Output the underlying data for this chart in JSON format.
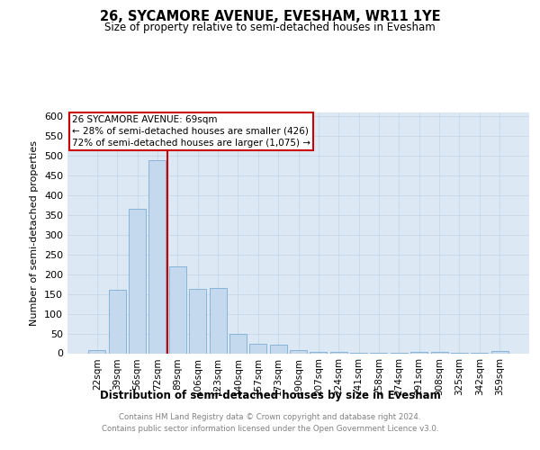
{
  "title1": "26, SYCAMORE AVENUE, EVESHAM, WR11 1YE",
  "title2": "Size of property relative to semi-detached houses in Evesham",
  "xlabel": "Distribution of semi-detached houses by size in Evesham",
  "ylabel": "Number of semi-detached properties",
  "footer1": "Contains HM Land Registry data © Crown copyright and database right 2024.",
  "footer2": "Contains public sector information licensed under the Open Government Licence v3.0.",
  "categories": [
    "22sqm",
    "39sqm",
    "56sqm",
    "72sqm",
    "89sqm",
    "106sqm",
    "123sqm",
    "140sqm",
    "157sqm",
    "173sqm",
    "190sqm",
    "207sqm",
    "224sqm",
    "241sqm",
    "258sqm",
    "274sqm",
    "291sqm",
    "308sqm",
    "325sqm",
    "342sqm",
    "359sqm"
  ],
  "values": [
    7,
    160,
    365,
    490,
    220,
    163,
    165,
    48,
    23,
    22,
    8,
    3,
    3,
    1,
    1,
    1,
    3,
    3,
    1,
    1,
    5
  ],
  "bar_color": "#c5d9ee",
  "bar_edge_color": "#7aadd4",
  "highlight_line_index": 3,
  "highlight_line_color": "#cc0000",
  "box_text_line1": "26 SYCAMORE AVENUE: 69sqm",
  "box_text_line2": "← 28% of semi-detached houses are smaller (426)",
  "box_text_line3": "72% of semi-detached houses are larger (1,075) →",
  "box_color": "white",
  "box_edge_color": "#cc0000",
  "ylim": [
    0,
    610
  ],
  "yticks": [
    0,
    50,
    100,
    150,
    200,
    250,
    300,
    350,
    400,
    450,
    500,
    550,
    600
  ],
  "background_color": "#ffffff",
  "grid_color": "#c5d5e5",
  "axes_bg_color": "#dce8f4"
}
